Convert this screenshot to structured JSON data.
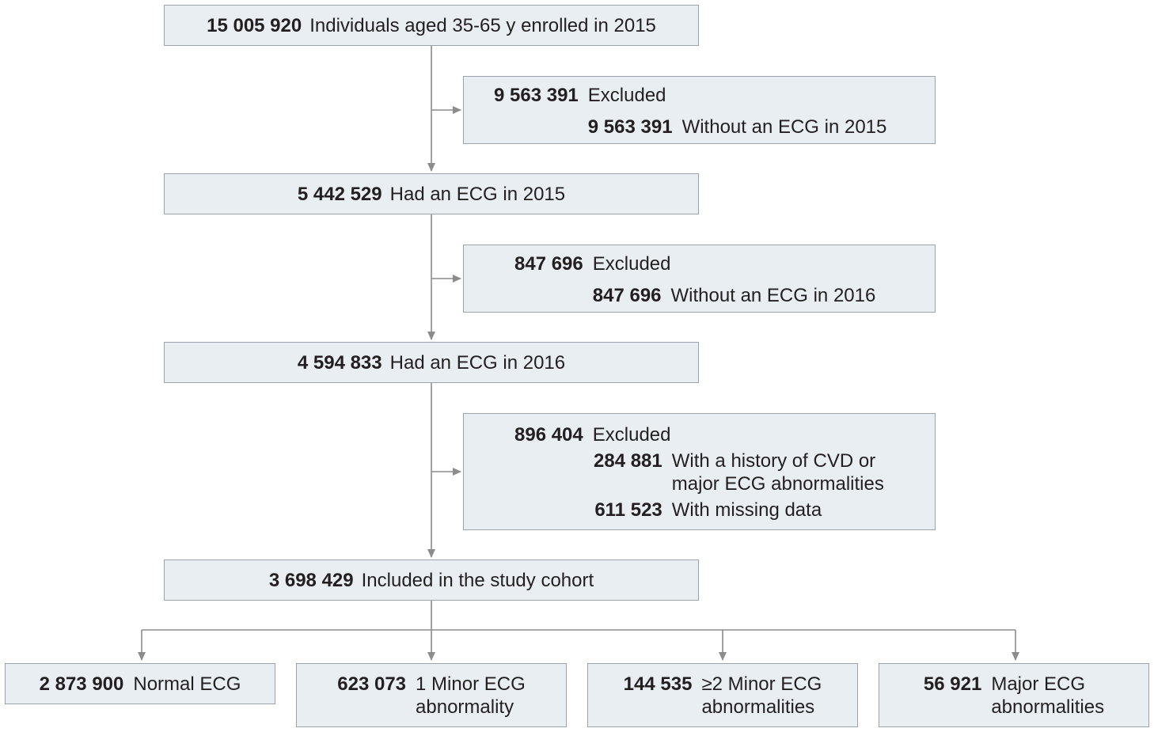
{
  "flowchart": {
    "enrolled": {
      "count": "15 005 920",
      "label": "Individuals aged 35-65 y enrolled in 2015"
    },
    "excluded_1": {
      "count": "9 563 391",
      "label": "Excluded",
      "reasons": [
        {
          "count": "9 563 391",
          "label": "Without an ECG in 2015"
        }
      ]
    },
    "had_ecg_2015": {
      "count": "5 442 529",
      "label": "Had an ECG in 2015"
    },
    "excluded_2": {
      "count": "847 696",
      "label": "Excluded",
      "reasons": [
        {
          "count": "847 696",
          "label": "Without an ECG in 2016"
        }
      ]
    },
    "had_ecg_2016": {
      "count": "4 594 833",
      "label": "Had an ECG in 2016"
    },
    "excluded_3": {
      "count": "896 404",
      "label": "Excluded",
      "reasons": [
        {
          "count": "284 881",
          "label": "With a history of CVD or\nmajor ECG abnormalities"
        },
        {
          "count": "611 523",
          "label": "With missing data"
        }
      ]
    },
    "cohort": {
      "count": "3 698 429",
      "label": "Included in the study cohort"
    },
    "outcomes": [
      {
        "count": "2 873 900",
        "label": "Normal ECG"
      },
      {
        "count": "623 073",
        "label": "1 Minor ECG\nabnormality"
      },
      {
        "count": "144 535",
        "label": "≥2 Minor ECG\nabnormalities"
      },
      {
        "count": "56 921",
        "label": "Major ECG\nabnormalities"
      }
    ]
  },
  "colors": {
    "box_fill": "#e9eef2",
    "box_border": "#9aa4ab",
    "connector": "#8c8c8c",
    "text": "#231f20"
  }
}
